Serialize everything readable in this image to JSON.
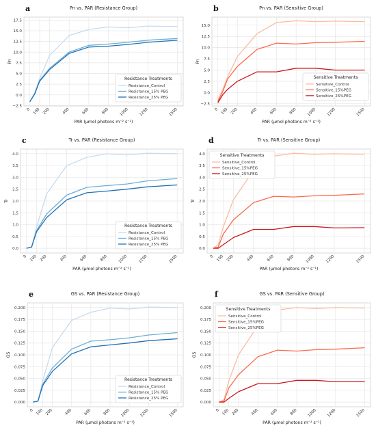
{
  "chart_data": [
    {
      "letter": "a",
      "type": "line",
      "title": "Pn vs. PAR (Resistance Group)",
      "xlabel": "PAR (μmol photons m⁻² s⁻¹)",
      "ylabel": "Pn",
      "x": [
        0,
        50,
        100,
        200,
        400,
        600,
        800,
        1000,
        1200,
        1500
      ],
      "xticks": [
        0,
        100,
        200,
        400,
        600,
        800,
        1000,
        1200,
        1500
      ],
      "ylim": [
        -2.6,
        18.2
      ],
      "yticks": [
        -2.5,
        0.0,
        2.5,
        5.0,
        7.5,
        10.0,
        12.5,
        15.0,
        17.5
      ],
      "ytick_labels": [
        "−2.5",
        "0.0",
        "2.5",
        "5.0",
        "7.5",
        "10.0",
        "12.5",
        "15.0",
        "17.5"
      ],
      "legend": {
        "title": "Resistance Treatments",
        "position": "lower-right"
      },
      "series": [
        {
          "name": "Resistance_Control",
          "color": "#c6dbef",
          "values": [
            -1.6,
            0.6,
            3.8,
            9.2,
            13.9,
            15.3,
            15.9,
            15.7,
            16.1,
            16.0
          ]
        },
        {
          "name": "Resistance_15% PEG",
          "color": "#6baed6",
          "values": [
            -1.6,
            0.3,
            3.4,
            6.2,
            10.0,
            11.6,
            11.9,
            12.3,
            12.8,
            13.2
          ]
        },
        {
          "name": "Resistance_25% PEG",
          "color": "#2171b5",
          "values": [
            -1.6,
            0.2,
            3.2,
            5.9,
            9.7,
            11.2,
            11.4,
            11.8,
            12.3,
            12.8
          ]
        }
      ]
    },
    {
      "letter": "b",
      "type": "line",
      "title": "Pn vs. PAR (Sensitive Group)",
      "xlabel": "PAR (μmol photons m⁻² s⁻¹)",
      "ylabel": "Pn",
      "x": [
        0,
        50,
        100,
        200,
        400,
        600,
        800,
        1000,
        1200,
        1500
      ],
      "xticks": [
        0,
        100,
        200,
        400,
        600,
        800,
        1000,
        1200,
        1500
      ],
      "ylim": [
        -3.0,
        16.8
      ],
      "yticks": [
        -2.5,
        0.0,
        2.5,
        5.0,
        7.5,
        10.0,
        12.5,
        15.0
      ],
      "ytick_labels": [
        "−2.5",
        "0.0",
        "2.5",
        "5.0",
        "7.5",
        "10.0",
        "12.5",
        "15.0"
      ],
      "legend": {
        "title": "Sensitive Treatments",
        "position": "center-right"
      },
      "series": [
        {
          "name": "Sensitive_Control",
          "color": "#fcbba1",
          "values": [
            -1.7,
            0.7,
            3.5,
            8.0,
            13.1,
            15.6,
            16.0,
            15.8,
            15.9,
            15.8
          ]
        },
        {
          "name": "Sensitive_15%PEG",
          "color": "#fb6a4a",
          "values": [
            -2.0,
            0.2,
            3.0,
            5.8,
            9.6,
            11.0,
            10.8,
            11.1,
            11.2,
            11.4
          ]
        },
        {
          "name": "Sensitive_25%PEG",
          "color": "#cb181d",
          "values": [
            -2.3,
            -0.5,
            0.7,
            2.5,
            4.6,
            4.6,
            5.4,
            5.4,
            5.0,
            5.0
          ]
        }
      ]
    },
    {
      "letter": "c",
      "type": "line",
      "title": "Tr vs. PAR (Resistance Group)",
      "xlabel": "PAR (μmol photons m⁻² s⁻¹)",
      "ylabel": "Tr",
      "x": [
        0,
        50,
        100,
        200,
        400,
        600,
        800,
        1000,
        1200,
        1500
      ],
      "xticks": [
        0,
        100,
        200,
        400,
        600,
        800,
        1000,
        1200,
        1500
      ],
      "ylim": [
        -0.2,
        4.2
      ],
      "yticks": [
        0.0,
        0.5,
        1.0,
        1.5,
        2.0,
        2.5,
        3.0,
        3.5,
        4.0
      ],
      "ytick_labels": [
        "0.0",
        "0.5",
        "1.0",
        "1.5",
        "2.0",
        "2.5",
        "3.0",
        "3.5",
        "4.0"
      ],
      "legend": {
        "title": "Resistance Treatments",
        "position": "lower-right"
      },
      "series": [
        {
          "name": "Resistance_Control",
          "color": "#c6dbef",
          "values": [
            0.0,
            0.05,
            0.9,
            2.3,
            3.5,
            3.85,
            4.0,
            3.95,
            4.02,
            4.0
          ]
        },
        {
          "name": "Resistance_15% PEG",
          "color": "#6baed6",
          "values": [
            0.0,
            0.05,
            0.75,
            1.45,
            2.25,
            2.58,
            2.65,
            2.72,
            2.85,
            2.95
          ]
        },
        {
          "name": "Resistance_25% PEG",
          "color": "#2171b5",
          "values": [
            0.0,
            0.05,
            0.7,
            1.3,
            2.05,
            2.35,
            2.42,
            2.5,
            2.6,
            2.68
          ]
        }
      ]
    },
    {
      "letter": "d",
      "type": "line",
      "title": "Tr vs. PAR (Sensitive Group)",
      "xlabel": "PAR (μmol photons m⁻² s⁻¹)",
      "ylabel": "Tr",
      "x": [
        0,
        50,
        100,
        200,
        400,
        600,
        800,
        1000,
        1200,
        1500
      ],
      "xticks": [
        0,
        100,
        200,
        400,
        600,
        800,
        1000,
        1200,
        1500
      ],
      "ylim": [
        -0.2,
        4.2
      ],
      "yticks": [
        0.0,
        0.5,
        1.0,
        1.5,
        2.0,
        2.5,
        3.0,
        3.5,
        4.0
      ],
      "ytick_labels": [
        "0.0",
        "0.5",
        "1.0",
        "1.5",
        "2.0",
        "2.5",
        "3.0",
        "3.5",
        "4.0"
      ],
      "legend": {
        "title": "Sensitive Treatments",
        "position": "upper-left"
      },
      "series": [
        {
          "name": "Sensitive_Control",
          "color": "#fcbba1",
          "values": [
            0.0,
            0.15,
            0.9,
            2.05,
            3.3,
            3.9,
            4.02,
            3.98,
            4.0,
            3.98
          ]
        },
        {
          "name": "Sensitive_15%PEG",
          "color": "#fb6a4a",
          "values": [
            0.0,
            0.05,
            0.6,
            1.2,
            1.93,
            2.2,
            2.17,
            2.22,
            2.24,
            2.3
          ]
        },
        {
          "name": "Sensitive_25%PEG",
          "color": "#cb181d",
          "values": [
            0.0,
            0.0,
            0.15,
            0.45,
            0.8,
            0.8,
            0.92,
            0.92,
            0.86,
            0.87
          ]
        }
      ]
    },
    {
      "letter": "e",
      "type": "line",
      "title": "GS vs. PAR (Resistance Group)",
      "xlabel": "PAR (μmol photons m⁻² s⁻¹)",
      "ylabel": "GS",
      "x": [
        0,
        50,
        100,
        200,
        400,
        600,
        800,
        1000,
        1200,
        1500
      ],
      "xticks": [
        0,
        100,
        200,
        400,
        600,
        800,
        1000,
        1200,
        1500
      ],
      "ylim": [
        -0.01,
        0.21
      ],
      "yticks": [
        0.0,
        0.025,
        0.05,
        0.075,
        0.1,
        0.125,
        0.15,
        0.175,
        0.2
      ],
      "ytick_labels": [
        "0.000",
        "0.025",
        "0.050",
        "0.075",
        "0.100",
        "0.125",
        "0.150",
        "0.175",
        "0.200"
      ],
      "legend": {
        "title": "Resistance Treatments",
        "position": "lower-right"
      },
      "series": [
        {
          "name": "Resistance_Control",
          "color": "#c6dbef",
          "values": [
            0.0,
            0.002,
            0.045,
            0.115,
            0.173,
            0.19,
            0.199,
            0.197,
            0.201,
            0.2
          ]
        },
        {
          "name": "Resistance_15% PEG",
          "color": "#6baed6",
          "values": [
            0.0,
            0.002,
            0.038,
            0.072,
            0.112,
            0.129,
            0.132,
            0.136,
            0.142,
            0.147
          ]
        },
        {
          "name": "Resistance_25% PEG",
          "color": "#2171b5",
          "values": [
            0.0,
            0.002,
            0.035,
            0.065,
            0.102,
            0.117,
            0.121,
            0.125,
            0.13,
            0.134
          ]
        }
      ]
    },
    {
      "letter": "f",
      "type": "line",
      "title": "GS vs. PAR (Sensitive Group)",
      "xlabel": "PAR (μmol photons m⁻² s⁻¹)",
      "ylabel": "GS",
      "x": [
        0,
        50,
        100,
        200,
        400,
        600,
        800,
        1000,
        1200,
        1500
      ],
      "xticks": [
        0,
        100,
        200,
        400,
        600,
        800,
        1000,
        1200,
        1500
      ],
      "ylim": [
        -0.01,
        0.21
      ],
      "yticks": [
        0.0,
        0.025,
        0.05,
        0.075,
        0.1,
        0.125,
        0.15,
        0.175,
        0.2
      ],
      "ytick_labels": [
        "0.000",
        "0.025",
        "0.050",
        "0.075",
        "0.100",
        "0.125",
        "0.150",
        "0.175",
        "0.200"
      ],
      "legend": {
        "title": "Sensitive Treatments",
        "position": "upper-left"
      },
      "series": [
        {
          "name": "Sensitive_Control",
          "color": "#fcbba1",
          "values": [
            0.0,
            0.005,
            0.045,
            0.1,
            0.162,
            0.195,
            0.2,
            0.198,
            0.2,
            0.199
          ]
        },
        {
          "name": "Sensitive_15%PEG",
          "color": "#fb6a4a",
          "values": [
            0.0,
            0.002,
            0.03,
            0.058,
            0.096,
            0.11,
            0.108,
            0.111,
            0.112,
            0.115
          ]
        },
        {
          "name": "Sensitive_25%PEG",
          "color": "#cb181d",
          "values": [
            0.0,
            0.0,
            0.008,
            0.022,
            0.039,
            0.039,
            0.046,
            0.046,
            0.043,
            0.043
          ]
        }
      ]
    }
  ]
}
